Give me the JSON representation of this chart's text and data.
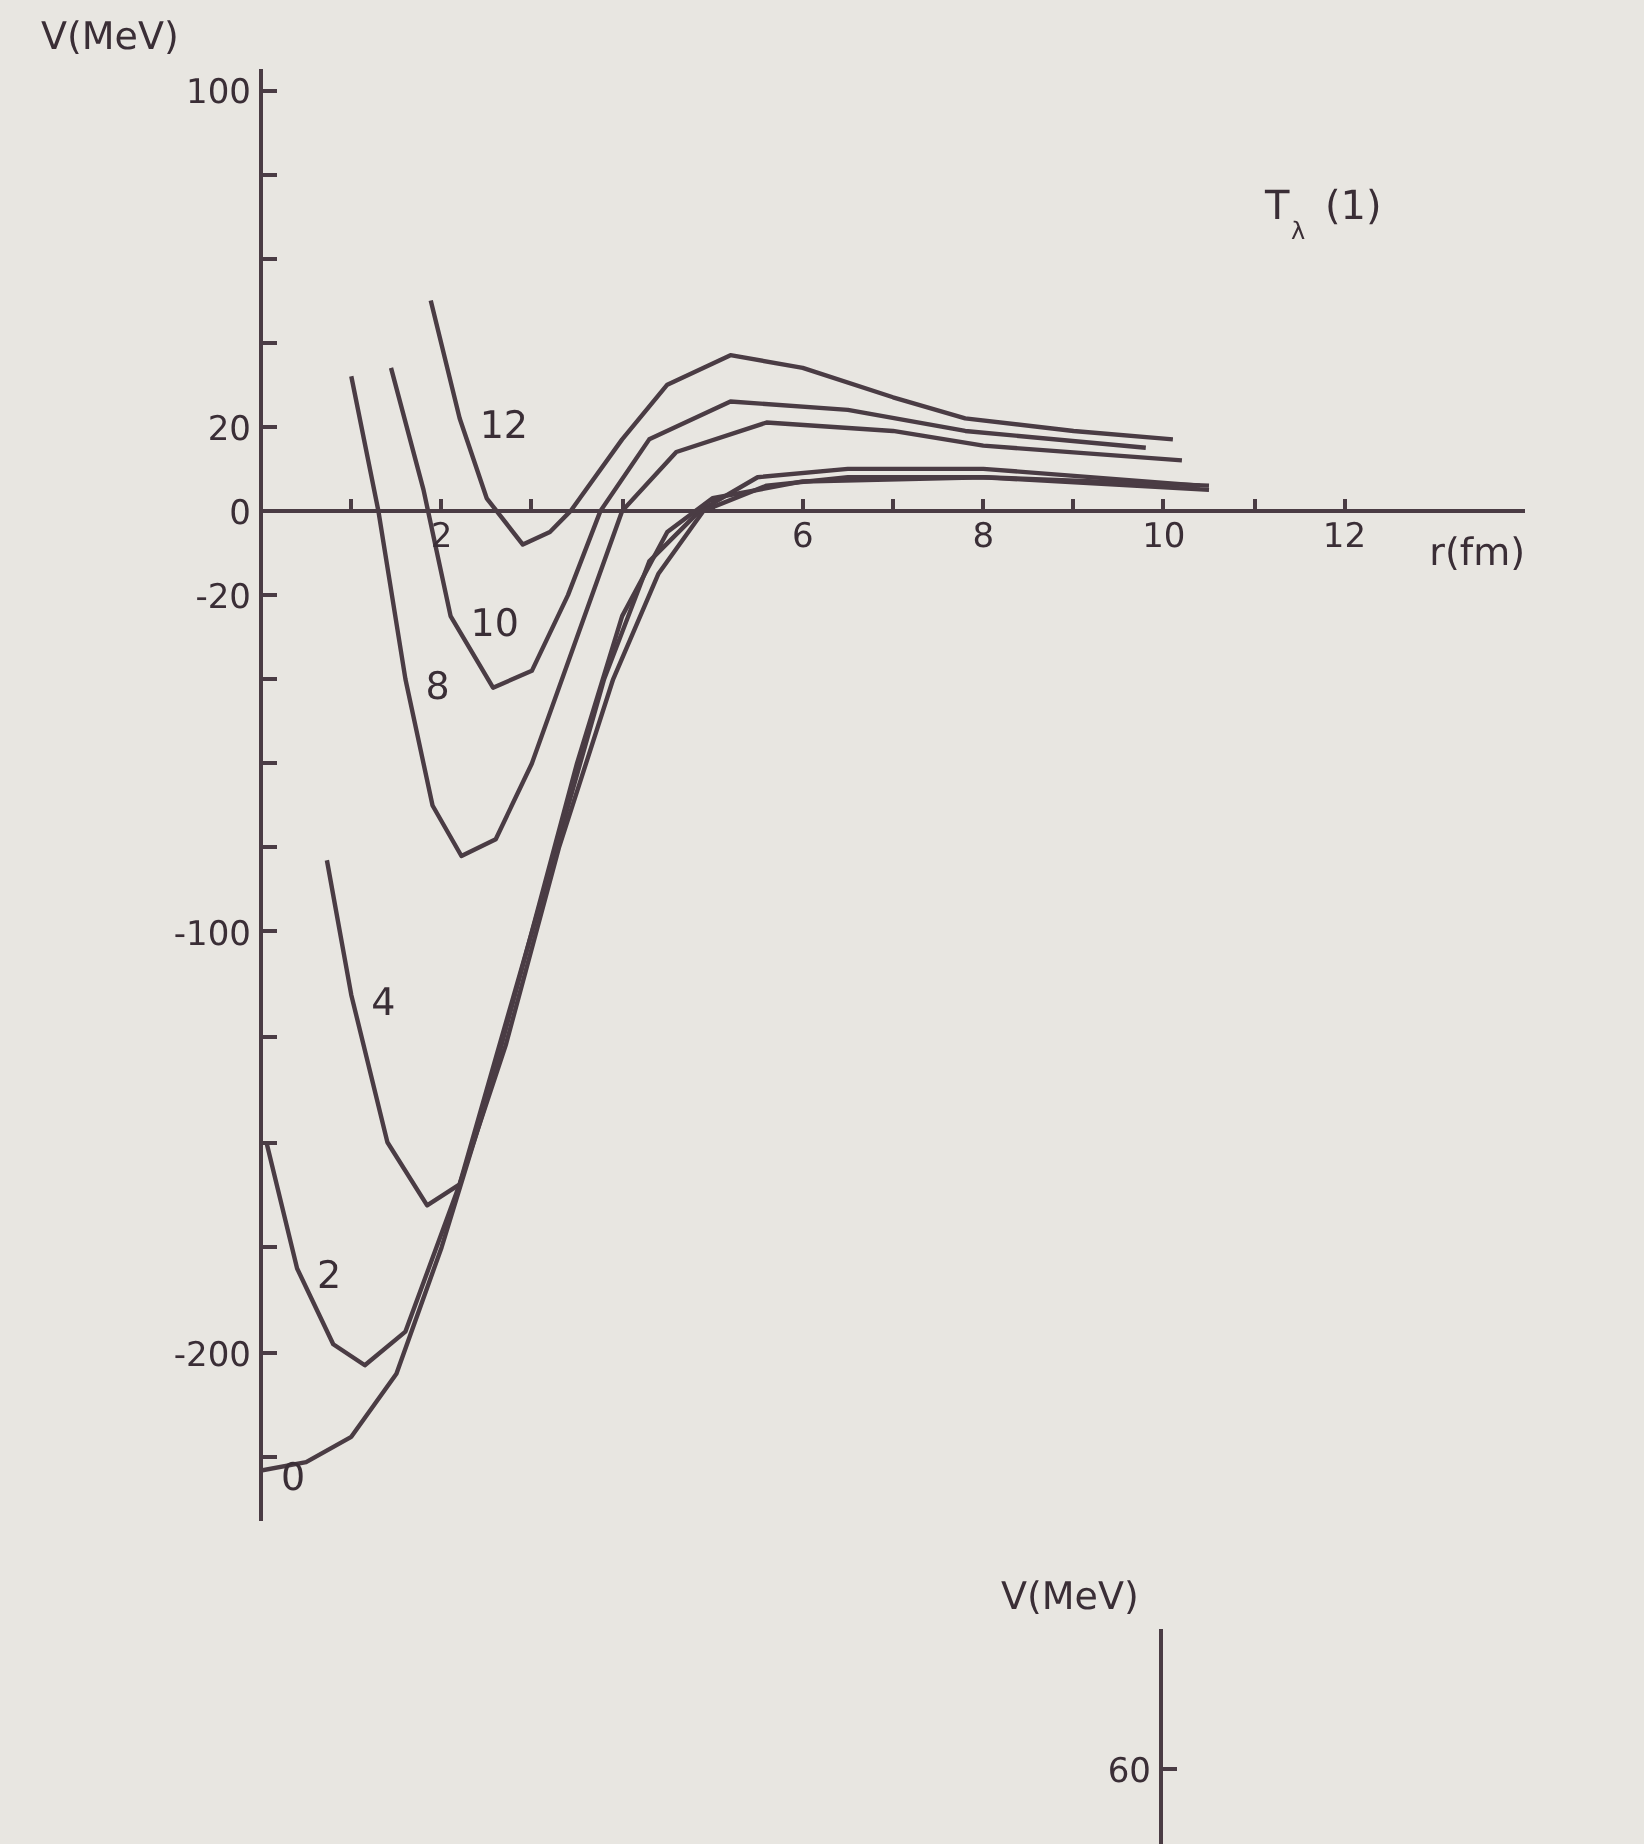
{
  "chart_data": [
    {
      "type": "line",
      "xlabel": "r(fm)",
      "ylabel": "V(MeV)",
      "annotations": [
        "T$_{λ}$ (1)"
      ],
      "xlim": [
        0,
        14
      ],
      "xticks": [
        {
          "value": 1,
          "label": null
        },
        2,
        {
          "value": 3,
          "label": null
        },
        {
          "value": 4,
          "label": null
        },
        {
          "value": 5,
          "label": null
        },
        6,
        {
          "value": 7,
          "label": null
        },
        8,
        {
          "value": 9,
          "label": null
        },
        10,
        {
          "value": 11,
          "label": null
        },
        12
      ],
      "ylim": [
        -240,
        105
      ],
      "yticks": [
        100,
        {
          "value": 80,
          "label": null
        },
        {
          "value": 60,
          "label": null
        },
        {
          "value": 40,
          "label": null
        },
        20,
        0,
        -20,
        {
          "value": -40,
          "label": null
        },
        {
          "value": -60,
          "label": null
        },
        {
          "value": -80,
          "label": null
        },
        -100,
        {
          "value": -125,
          "label": null
        },
        {
          "value": -150,
          "label": null
        },
        {
          "value": -175,
          "label": null
        },
        -200,
        {
          "value": -225,
          "label": null
        }
      ],
      "marker": "none",
      "line_style": "solid",
      "series": [
        {
          "name": "12",
          "color": "#4a3c44",
          "x": [
            1.88,
            2.2,
            2.5,
            2.9,
            3.2,
            3.43,
            4,
            4.5,
            5.2,
            6,
            7,
            7.8,
            9,
            10.1
          ],
          "values": [
            50,
            22,
            3,
            -8,
            -5,
            0,
            17,
            30,
            37,
            34,
            27,
            22,
            19,
            17
          ]
        },
        {
          "name": "10",
          "color": "#4a3c44",
          "x": [
            1.44,
            1.8,
            2.1,
            2.57,
            3,
            3.4,
            3.76,
            4.3,
            5.2,
            6.5,
            7.8,
            9.8
          ],
          "values": [
            34,
            5,
            -25,
            -42,
            -38,
            -20,
            0,
            17,
            26,
            24,
            19,
            15
          ]
        },
        {
          "name": "8",
          "color": "#4a3c44",
          "x": [
            1.0,
            1.3,
            1.6,
            1.9,
            2.22,
            2.6,
            3,
            3.5,
            4.0,
            4.6,
            5.6,
            7,
            8,
            10.2
          ],
          "values": [
            32,
            0,
            -40,
            -70,
            -82,
            -78,
            -60,
            -30,
            0,
            14,
            21,
            19,
            15.5,
            12
          ]
        },
        {
          "name": "4",
          "color": "#4a3c44",
          "x": [
            0.73,
            1.0,
            1.4,
            1.84,
            2.2,
            2.6,
            3.27,
            3.8,
            4.3,
            4.86,
            5.5,
            6.5,
            8,
            10.4
          ],
          "values": [
            -83,
            -115,
            -150,
            -165,
            -160,
            -130,
            -80,
            -40,
            -12,
            0,
            8,
            10,
            10,
            6
          ]
        },
        {
          "name": "2",
          "color": "#4a3c44",
          "x": [
            0.06,
            0.4,
            0.8,
            1.15,
            1.6,
            2.2,
            2.71,
            3.3,
            3.9,
            4.4,
            4.9,
            5.6,
            6.5,
            8,
            10.5
          ],
          "values": [
            -150,
            -180,
            -198,
            -203,
            -195,
            -160,
            -127,
            -80,
            -40,
            -15,
            0,
            6,
            8,
            8,
            5
          ]
        },
        {
          "name": "0",
          "color": "#4a3c44",
          "x": [
            0,
            0.5,
            1,
            1.5,
            2,
            2.5,
            3,
            3.5,
            4,
            4.5,
            5,
            6,
            8,
            10.5
          ],
          "values": [
            -228,
            -226,
            -220,
            -205,
            -175,
            -140,
            -100,
            -60,
            -25,
            -5,
            3,
            7,
            8,
            6
          ]
        }
      ]
    },
    {
      "type": "other",
      "ylabel": "V(MeV)",
      "annotations": [
        "60"
      ]
    }
  ]
}
